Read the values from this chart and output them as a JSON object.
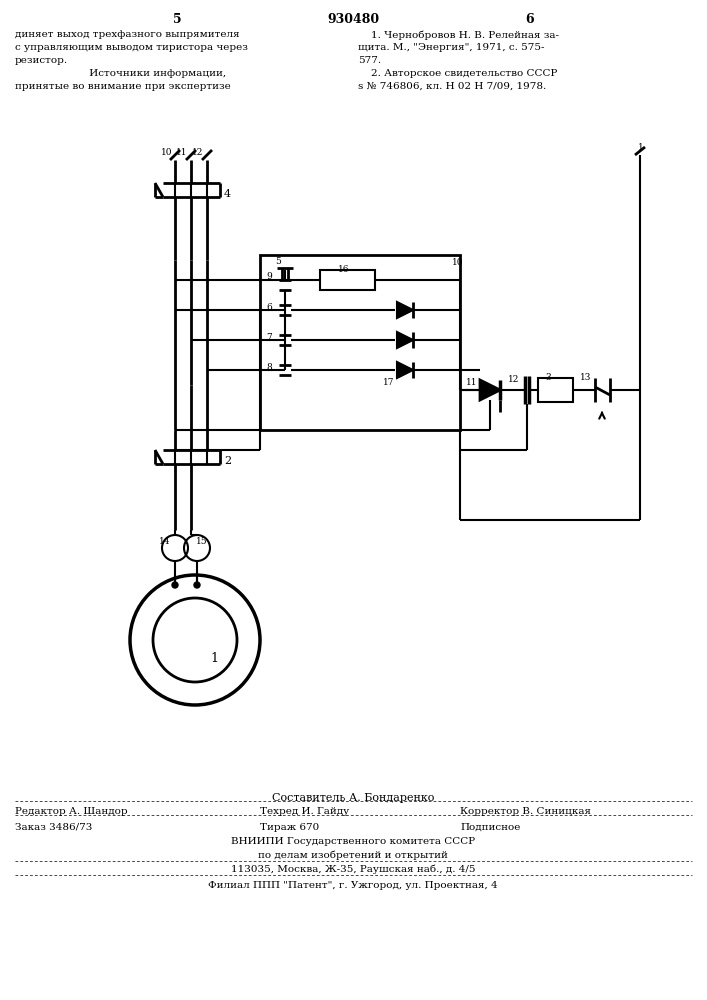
{
  "page_number_left": "5",
  "page_number_center": "930480",
  "page_number_right": "6",
  "text_left": "диняет выход трехфазного выпрямителя\nс управляющим выводом тиристора через\nрезистор.\n         Источники информации,\nпринятые во внимание при экспертизе",
  "text_right": "    1. Чернобровов Н. В. Релейная за-\nщита. М., \"Энергия\", 1971, с. 575-\n577.\n    2. Авторское свидетельство СССР\ns № 746806, кл. Н 02 Н 7/09, 1978.",
  "footer_line1": "Составитель А. Бондаренко",
  "footer_line2_left": "Редактор А. Шандор",
  "footer_line2_mid": "Техред И. Гайду",
  "footer_line2_right": "Корректор В. Синицкая",
  "footer_line3_left": "Заказ 3486/73",
  "footer_line3_mid": "Тираж 670",
  "footer_line3_right": "Подписное",
  "footer_line4": "ВНИИПИ Государственного комитета СССР",
  "footer_line5": "по делам изобретений и открытий",
  "footer_line6": "113035, Москва, Ж-35, Раушская наб., д. 4/5",
  "footer_line7": "Филиал ППП \"Патент\", г. Ужгород, ул. Проектная, 4",
  "bg_color": "#ffffff",
  "line_color": "#000000"
}
